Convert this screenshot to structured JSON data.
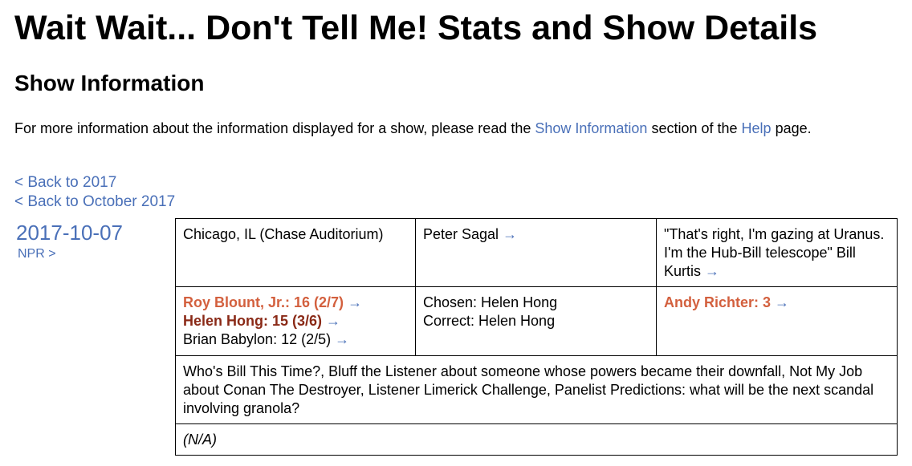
{
  "page": {
    "title": "Wait Wait... Don't Tell Me! Stats and Show Details",
    "section_title": "Show Information"
  },
  "intro": {
    "text_before": "For more information about the information displayed for a show, please read the ",
    "show_info_link": "Show Information",
    "text_middle": " section of the ",
    "help_link": "Help",
    "text_after": " page."
  },
  "nav": {
    "back_year": "< Back to 2017",
    "back_month": "< Back to October 2017"
  },
  "show": {
    "date": "2017-10-07",
    "network": "NPR >",
    "location": "Chicago, IL (Chase Auditorium)",
    "host": "Peter Sagal",
    "scorekeeper_quote": "\"That's right, I'm gazing at Uranus. I'm the Hub-Bill telescope\" Bill Kurtis",
    "panelists": [
      {
        "label": "Roy Blount, Jr.: 16 (2/7)",
        "rank": "winner"
      },
      {
        "label": "Helen Hong: 15 (3/6)",
        "rank": "second"
      },
      {
        "label": "Brian Babylon: 12 (2/5)",
        "rank": "third"
      }
    ],
    "bluff": {
      "chosen": "Chosen: Helen Hong",
      "correct": "Correct: Helen Hong"
    },
    "guest": "Andy Richter: 3",
    "segments": "Who's Bill This Time?, Bluff the Listener about someone whose powers became their downfall, Not My Job about Conan The Destroyer, Listener Limerick Challenge, Panelist Predictions: what will be the next scandal involving granola?",
    "notes": "(N/A)",
    "arrow": "→"
  },
  "colors": {
    "link": "#4a70b8",
    "winner": "#d3603e",
    "second": "#8a2a17"
  }
}
